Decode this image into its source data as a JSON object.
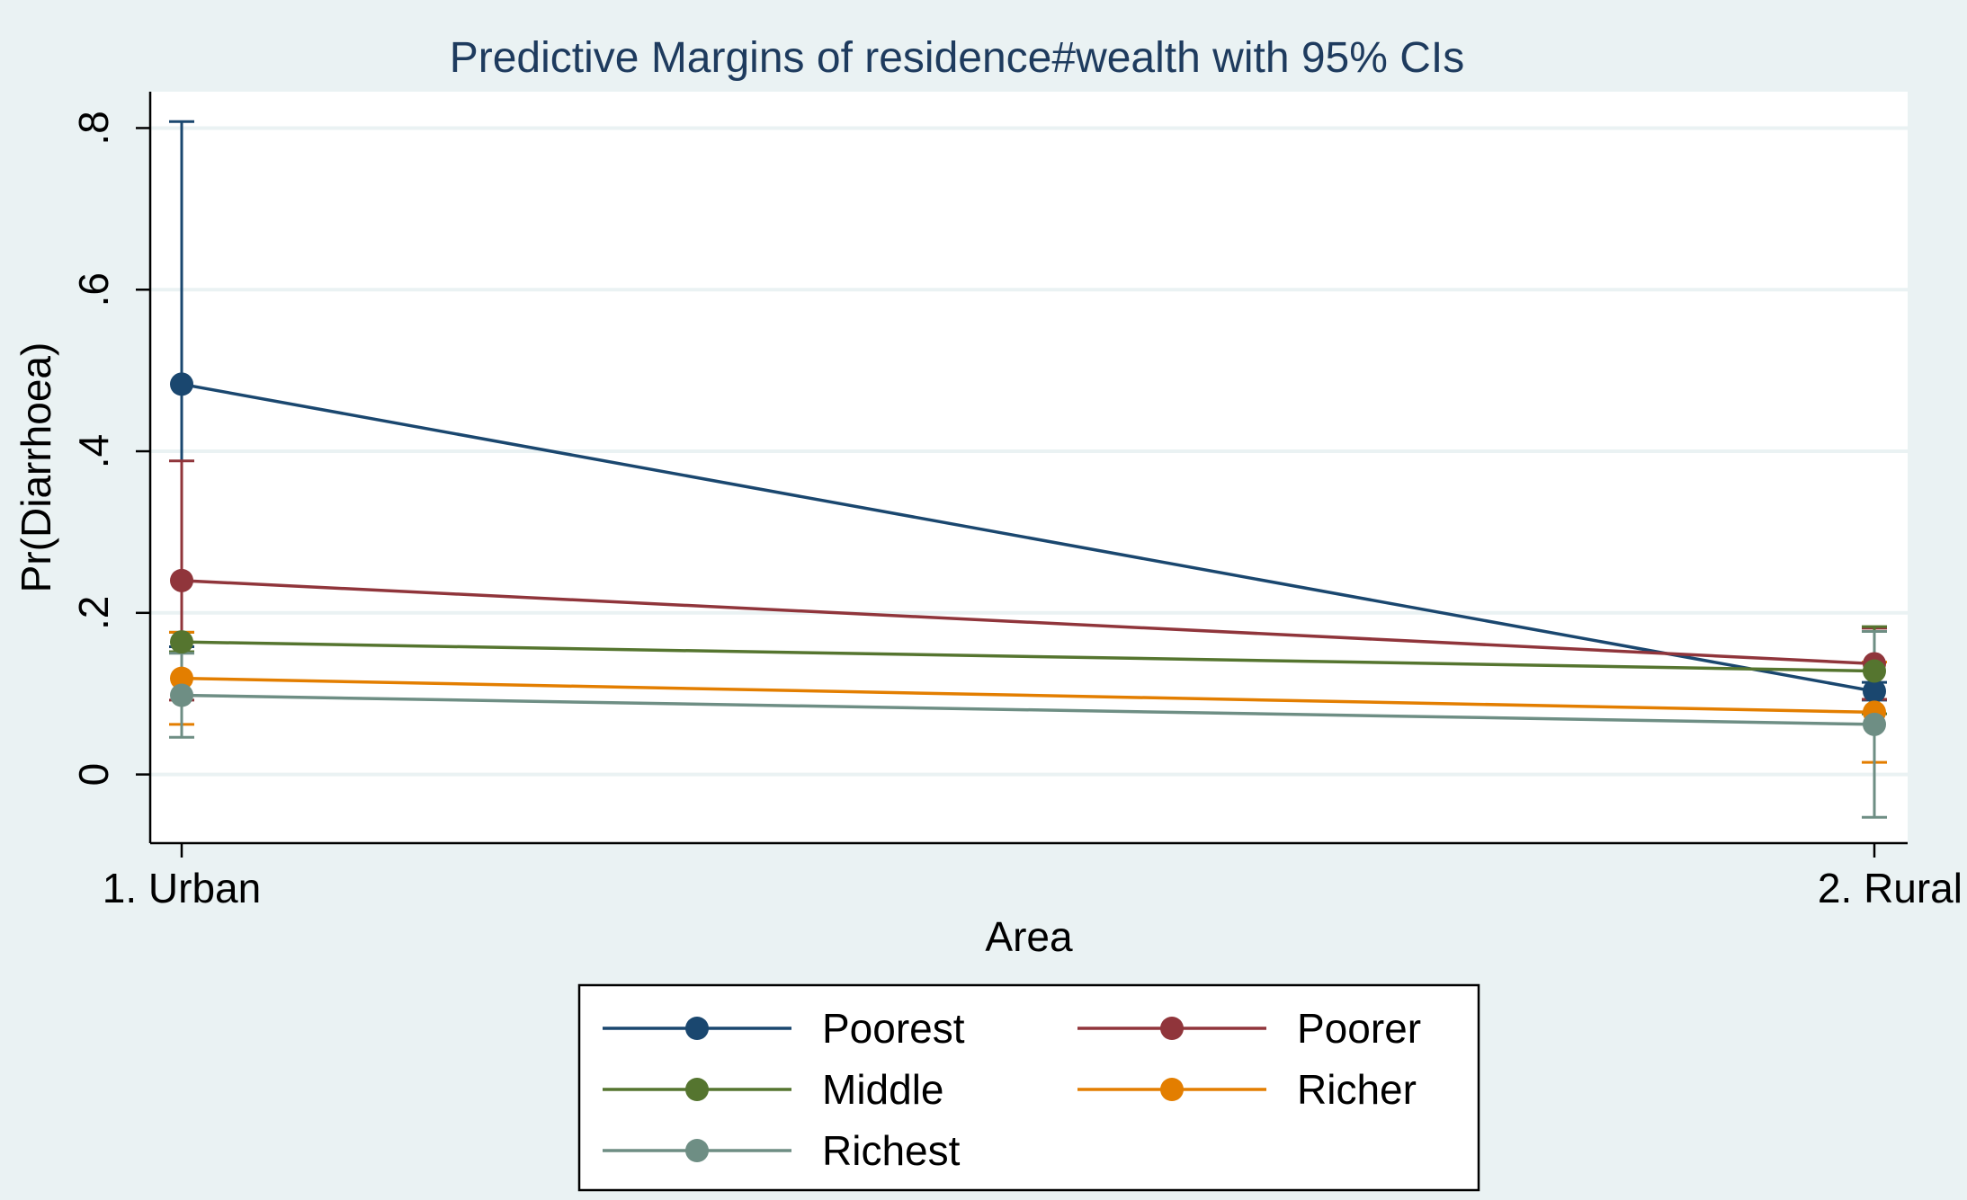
{
  "chart_data": {
    "type": "line",
    "title": "Predictive Margins of residence#wealth with 95% CIs",
    "xlabel": "Area",
    "ylabel": "Pr(Diarrhoea)",
    "categories": [
      "1. Urban",
      "2. Rural"
    ],
    "yticks": [
      {
        "value": 0,
        "label": "0"
      },
      {
        "value": 0.2,
        "label": ".2"
      },
      {
        "value": 0.4,
        "label": ".4"
      },
      {
        "value": 0.6,
        "label": ".6"
      },
      {
        "value": 0.8,
        "label": ".8"
      }
    ],
    "ylim": [
      -0.085,
      0.845
    ],
    "grid": true,
    "legend_position": "bottom",
    "series": [
      {
        "name": "Poorest",
        "color": "#1a476f",
        "values": [
          0.483,
          0.103
        ],
        "ci_low": [
          0.158,
          0.092
        ],
        "ci_high": [
          0.808,
          0.114
        ]
      },
      {
        "name": "Poorer",
        "color": "#90353b",
        "values": [
          0.24,
          0.137
        ],
        "ci_low": [
          0.092,
          0.093
        ],
        "ci_high": [
          0.388,
          0.181
        ]
      },
      {
        "name": "Middle",
        "color": "#55752f",
        "values": [
          0.164,
          0.128
        ],
        "ci_low": [
          0.152,
          0.075
        ],
        "ci_high": [
          0.176,
          0.183
        ]
      },
      {
        "name": "Richer",
        "color": "#e37e00",
        "values": [
          0.119,
          0.077
        ],
        "ci_low": [
          0.062,
          0.015
        ],
        "ci_high": [
          0.176,
          0.139
        ]
      },
      {
        "name": "Richest",
        "color": "#6e8e84",
        "values": [
          0.098,
          0.062
        ],
        "ci_low": [
          0.046,
          -0.053
        ],
        "ci_high": [
          0.15,
          0.177
        ]
      }
    ]
  }
}
